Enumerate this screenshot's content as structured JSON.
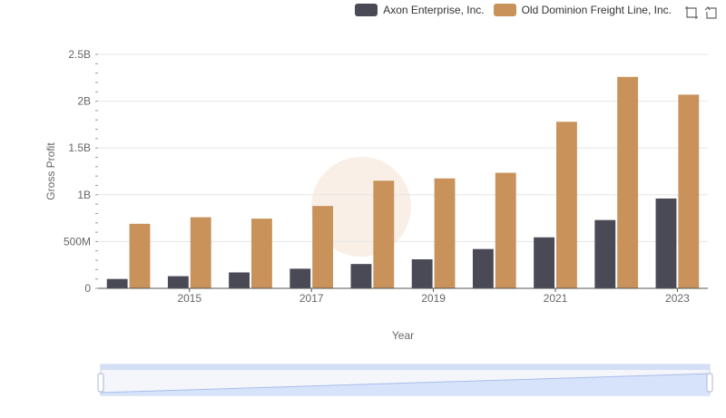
{
  "legend": {
    "series_a": "Axon Enterprise, Inc.",
    "series_b": "Old Dominion Freight Line, Inc."
  },
  "toolbox": {
    "zoom_icon": "zoom-icon",
    "restore_icon": "restore-icon"
  },
  "colors": {
    "series_a": "#4a4a56",
    "series_b": "#c8925a",
    "grid": "#e6e6e6",
    "axis": "#666666",
    "slider_fill": "#d7e3fb",
    "slider_border": "#c3d0ea"
  },
  "chart_data": {
    "type": "bar",
    "xlabel": "Year",
    "ylabel": "Gross Profit",
    "categories": [
      "2014",
      "2015",
      "2016",
      "2017",
      "2018",
      "2019",
      "2020",
      "2021",
      "2022",
      "2023"
    ],
    "x_tick_labels": [
      "2015",
      "2017",
      "2019",
      "2021",
      "2023"
    ],
    "y_ticks": [
      0,
      500000000,
      1000000000,
      1500000000,
      2000000000,
      2500000000
    ],
    "y_tick_labels": [
      "0",
      "500M",
      "1B",
      "1.5B",
      "2B",
      "2.5B"
    ],
    "ylim": [
      0,
      2500000000
    ],
    "grid": true,
    "legend_position": "top-right",
    "series": [
      {
        "name": "Axon Enterprise, Inc.",
        "values": [
          100000000,
          130000000,
          170000000,
          210000000,
          260000000,
          310000000,
          420000000,
          545000000,
          730000000,
          960000000
        ]
      },
      {
        "name": "Old Dominion Freight Line, Inc.",
        "values": [
          690000000,
          760000000,
          745000000,
          880000000,
          1150000000,
          1175000000,
          1235000000,
          1780000000,
          2260000000,
          2070000000
        ]
      }
    ]
  }
}
